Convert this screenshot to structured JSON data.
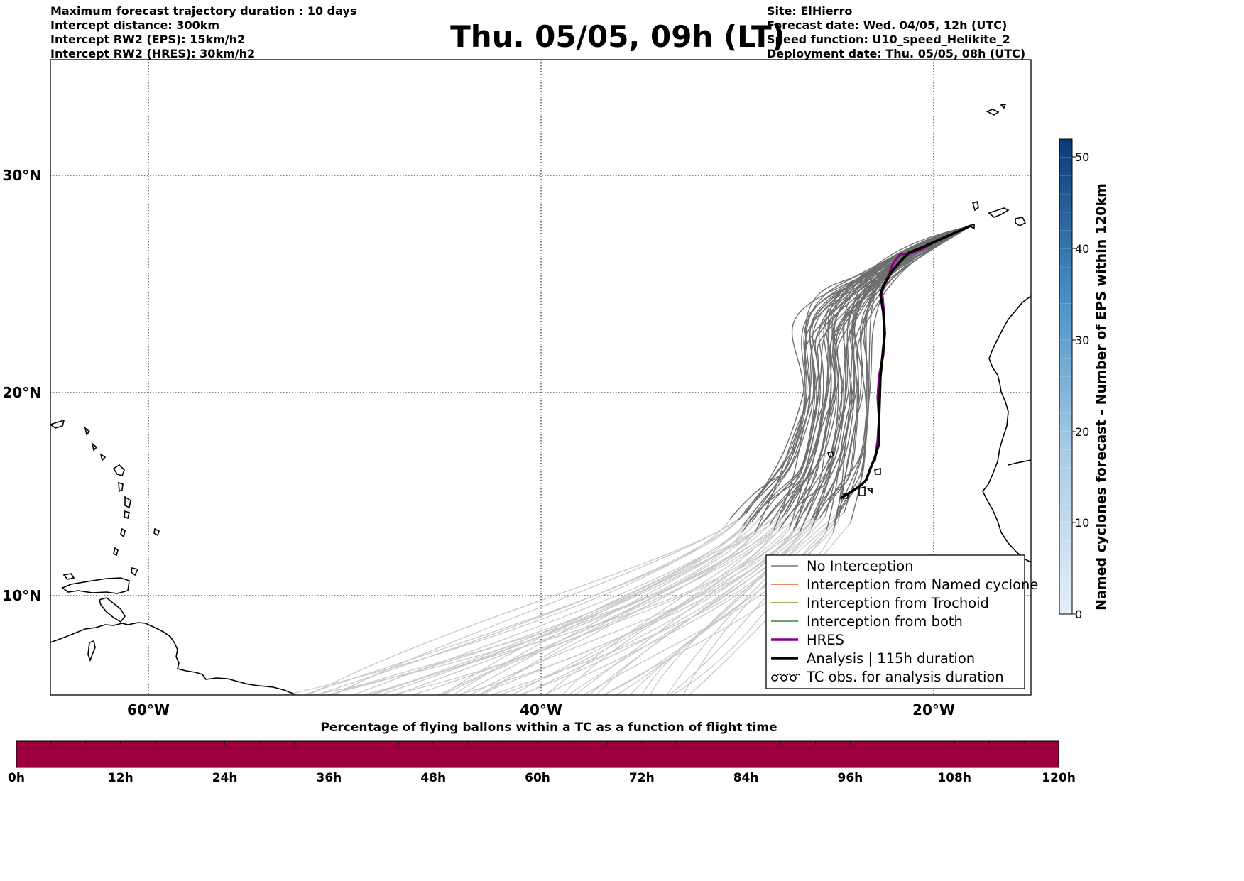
{
  "header": {
    "left_lines": [
      "Maximum forecast trajectory duration : 10 days",
      "Intercept distance: 300km",
      "Intercept RW2 (EPS):  15km/h2",
      "Intercept RW2 (HRES): 30km/h2"
    ],
    "title": "Thu. 05/05, 09h (LT)",
    "right_lines": [
      "Site: ElHierro",
      "Forecast date: Wed. 04/05, 12h (UTC)",
      "Speed function: U10_speed_Helikite_2",
      "Deployment date: Thu. 05/05, 08h (UTC)"
    ]
  },
  "map": {
    "lon_labels": [
      "60°W",
      "40°W",
      "20°W"
    ],
    "lat_labels": [
      "30°N",
      "20°N",
      "10°N"
    ],
    "extent": {
      "lon": [
        -65,
        -15
      ],
      "lat": [
        5.4,
        34.7
      ]
    }
  },
  "legend": {
    "items": [
      {
        "label": "No Interception",
        "color": "#777777"
      },
      {
        "label": "Interception from Named cyclone",
        "color": "#e8632b"
      },
      {
        "label": "Interception from Trochoid",
        "color": "#8a8a2a"
      },
      {
        "label": "Interception from both",
        "color": "#2e8b2e"
      },
      {
        "label": "HRES",
        "color": "#8b008b"
      },
      {
        "label": "Analysis | 115h duration",
        "color": "#000000"
      },
      {
        "label": "TC obs. for analysis duration",
        "color": "#000000"
      }
    ]
  },
  "colorbar": {
    "label": "Named cyclones forecast - Number of EPS within 120km",
    "ticks": [
      "0",
      "10",
      "20",
      "30",
      "40",
      "50"
    ],
    "range": [
      0,
      52
    ],
    "color_low": "#e6eef9",
    "color_high": "#0b3a75"
  },
  "bottom_bar": {
    "title": "Percentage of flying ballons within a TC as a function of flight time",
    "ticks": [
      "0h",
      "12h",
      "24h",
      "36h",
      "48h",
      "60h",
      "72h",
      "84h",
      "96h",
      "108h",
      "120h"
    ],
    "fill_color": "#9c003c"
  }
}
